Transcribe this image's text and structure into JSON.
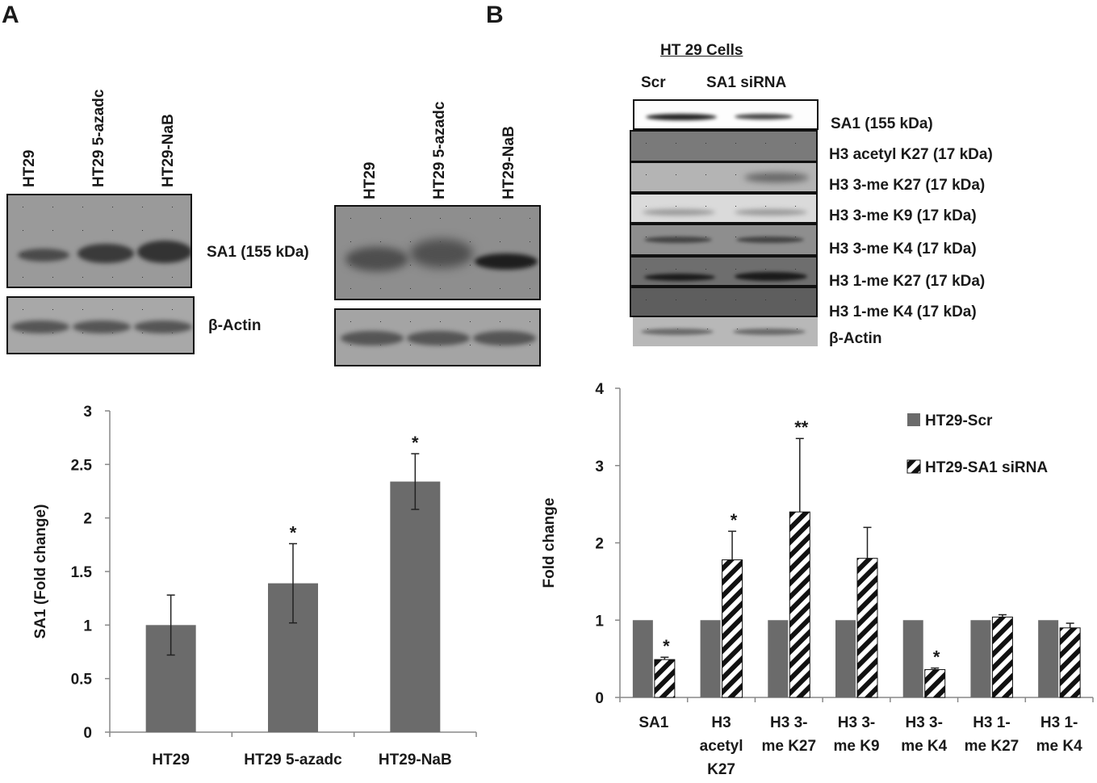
{
  "panel_a": {
    "letter": "A",
    "blot1": {
      "lanes": [
        "HT29",
        "HT29 5-azadc",
        "HT29-NaB"
      ],
      "label_sa1": "SA1 (155 kDa)",
      "label_actin": "β-Actin"
    },
    "blot2": {
      "lanes": [
        "HT29",
        "HT29 5-azadc",
        "HT29-NaB"
      ]
    }
  },
  "panel_b": {
    "letter": "B",
    "title": "HT 29 Cells",
    "lane_scr": "Scr",
    "lane_sirna": "SA1 siRNA",
    "strips": [
      "SA1 (155 kDa)",
      "H3 acetyl K27 (17 kDa)",
      "H3 3-me K27 (17 kDa)",
      "H3 3-me K9 (17 kDa)",
      "H3 3-me K4 (17 kDa)",
      "H3 1-me K27 (17 kDa)",
      "H3 1-me K4 (17 kDa)",
      "β-Actin"
    ]
  },
  "colors": {
    "bar_gray": "#6b6b6b",
    "axis": "#888888",
    "text": "#1a1a1a"
  },
  "chart_data": [
    {
      "type": "bar",
      "title": "",
      "xlabel": "",
      "ylabel": "SA1 (Fold change)",
      "categories": [
        "HT29",
        "HT29 5-azadc",
        "HT29-NaB"
      ],
      "values": [
        1.0,
        1.39,
        2.34
      ],
      "errors": [
        0.28,
        0.37,
        0.26
      ],
      "significance": [
        "",
        "*",
        "*"
      ],
      "ylim": [
        0,
        3
      ],
      "yticks": [
        0,
        0.5,
        1,
        1.5,
        2,
        2.5,
        3
      ],
      "ytick_labels": [
        "0",
        "0.5",
        "1",
        "1.5",
        "2",
        "2.5",
        "3"
      ]
    },
    {
      "type": "bar",
      "title": "",
      "xlabel": "",
      "ylabel": "Fold change",
      "categories": [
        "SA1",
        "H3 acetyl K27",
        "H3 3-me K27",
        "H3 3-me K9",
        "H3 3-me K4",
        "H3 1-me K27",
        "H3 1-me K4"
      ],
      "category_lines": [
        [
          "SA1"
        ],
        [
          "H3",
          "acetyl",
          "K27"
        ],
        [
          "H3 3-",
          "me K27"
        ],
        [
          "H3 3-",
          "me K9"
        ],
        [
          "H3 3-",
          "me K4"
        ],
        [
          "H3 1-",
          "me K27"
        ],
        [
          "H3 1-",
          "me K4"
        ]
      ],
      "series": [
        {
          "name": "HT29-Scr",
          "values": [
            1,
            1,
            1,
            1,
            1,
            1,
            1
          ]
        },
        {
          "name": "HT29-SA1 siRNA",
          "values": [
            0.49,
            1.78,
            2.4,
            1.8,
            0.36,
            1.04,
            0.9
          ],
          "errors": [
            0.03,
            0.37,
            0.95,
            0.4,
            0.02,
            0.03,
            0.06
          ],
          "significance": [
            "*",
            "*",
            "**",
            "",
            "*",
            "",
            ""
          ]
        }
      ],
      "ylim": [
        0,
        4
      ],
      "yticks": [
        0,
        1,
        2,
        3,
        4
      ],
      "ytick_labels": [
        "0",
        "1",
        "2",
        "3",
        "4"
      ],
      "legend": "top-right"
    }
  ]
}
